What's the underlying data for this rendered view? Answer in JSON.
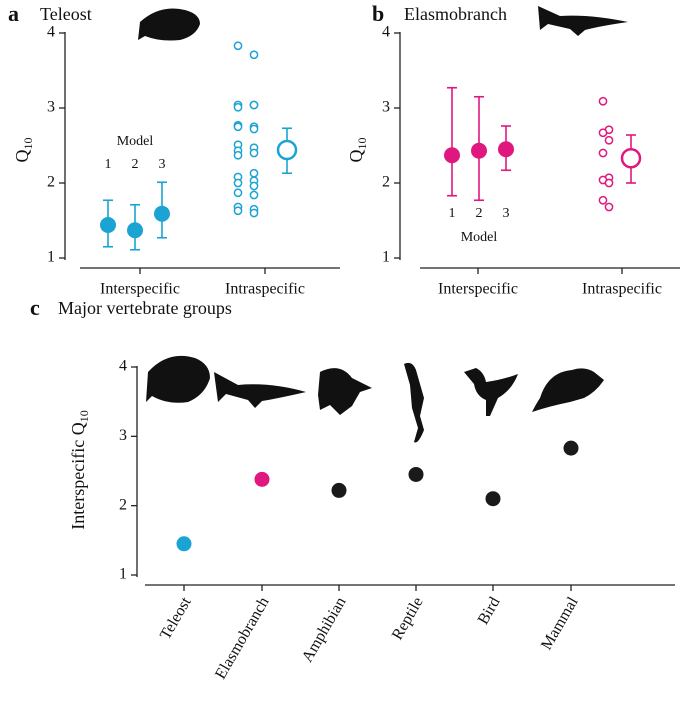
{
  "chart_data": [
    {
      "type": "dotplot",
      "panel": "a",
      "title": "Teleost",
      "ylabel": {
        "text": "Q",
        "subscript": "10"
      },
      "ylim": [
        1,
        4
      ],
      "yticks": [
        1,
        2,
        3,
        4
      ],
      "categories": [
        "Interspecific",
        "Intraspecific"
      ],
      "color": "#1ba3d3",
      "model_label": "Model",
      "models": {
        "names": [
          "1",
          "2",
          "3"
        ],
        "values": [
          1.44,
          1.37,
          1.59
        ],
        "low": [
          1.15,
          1.11,
          1.27
        ],
        "high": [
          1.77,
          1.71,
          2.01
        ]
      },
      "intraspecific": {
        "values": [
          3.83,
          3.71,
          3.04,
          3.04,
          3.01,
          3.04,
          2.77,
          2.75,
          2.75,
          2.72,
          2.51,
          2.47,
          2.43,
          2.4,
          2.37,
          2.13,
          2.08,
          2.03,
          2.0,
          1.96,
          1.87,
          1.84,
          1.68,
          1.65,
          1.63,
          1.6
        ],
        "mean": 2.44,
        "low": 2.13,
        "high": 2.73
      }
    },
    {
      "type": "dotplot",
      "panel": "b",
      "title": "Elasmobranch",
      "ylabel": {
        "text": "Q",
        "subscript": "10"
      },
      "ylim": [
        1,
        4
      ],
      "yticks": [
        1,
        2,
        3,
        4
      ],
      "categories": [
        "Interspecific",
        "Intraspecific"
      ],
      "color": "#e0177f",
      "model_label": "Model",
      "models": {
        "names": [
          "1",
          "2",
          "3"
        ],
        "values": [
          2.37,
          2.43,
          2.45
        ],
        "low": [
          1.83,
          1.77,
          2.17
        ],
        "high": [
          3.27,
          3.15,
          2.76
        ]
      },
      "intraspecific": {
        "values": [
          3.09,
          2.71,
          2.67,
          2.57,
          2.4,
          2.07,
          2.04,
          2.0,
          1.77,
          1.68
        ],
        "mean": 2.33,
        "low": 2.0,
        "high": 2.64
      }
    },
    {
      "type": "scatter",
      "panel": "c",
      "title": "Major vertebrate groups",
      "ylabel": {
        "text": "Interspecific Q",
        "subscript": "10"
      },
      "ylim": [
        1,
        4
      ],
      "yticks": [
        1,
        2,
        3,
        4
      ],
      "categories": [
        "Teleost",
        "Elasmobranch",
        "Amphibian",
        "Reptile",
        "Bird",
        "Mammal"
      ],
      "values": [
        1.45,
        2.38,
        2.22,
        2.45,
        2.1,
        2.83
      ],
      "colors": [
        "#1ba3d3",
        "#e0177f",
        "#1a1a1a",
        "#1a1a1a",
        "#1a1a1a",
        "#1a1a1a"
      ]
    }
  ]
}
